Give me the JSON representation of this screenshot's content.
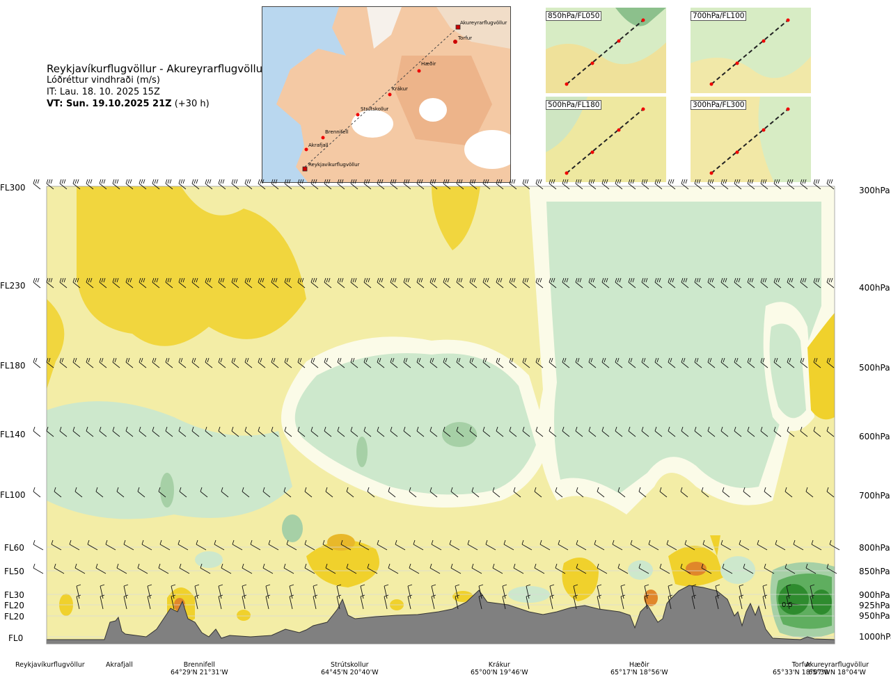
{
  "title": {
    "route": "Reykjavíkurflugvöllur - Akureyrarflugvöllur",
    "quantity": "Lóðréttur vindhraði (m/s)",
    "it": "IT: Lau. 18. 10. 2025 15Z",
    "vt_bold": "VT: Sun. 19.10.2025 21Z",
    "vt_lead": "(+30 h)"
  },
  "map": {
    "points": [
      {
        "name": "Akureyrarflugvöllur"
      },
      {
        "name": "Torfur"
      },
      {
        "name": "Hæðir"
      },
      {
        "name": "Krákur"
      },
      {
        "name": "Strútskollur"
      },
      {
        "name": "Brennifell"
      },
      {
        "name": "Akrafjall"
      },
      {
        "name": "Reykjavíkurflugvöllur"
      }
    ]
  },
  "insets": [
    {
      "label": "850hPa/FL050"
    },
    {
      "label": "700hPa/FL100"
    },
    {
      "label": "500hPa/FL180"
    },
    {
      "label": "300hPa/FL300"
    }
  ],
  "chart_data": {
    "type": "heatmap",
    "title": "Lóðréttur vindhraði (m/s)",
    "y_axis_left_flight_levels": [
      "FL300",
      "FL230",
      "FL180",
      "FL140",
      "FL100",
      "FL60",
      "FL50",
      "FL30",
      "FL20",
      "FL20",
      "FL0"
    ],
    "y_axis_right_pressure": [
      "300hPa",
      "400hPa",
      "500hPa",
      "600hPa",
      "700hPa",
      "800hPa",
      "850hPa",
      "900hPa",
      "925hPa",
      "950hPa",
      "1000hPa"
    ],
    "pressure_hpa": [
      300,
      400,
      500,
      600,
      700,
      800,
      850,
      900,
      925,
      950,
      1000
    ],
    "x_stations": [
      {
        "name": "Reykjavíkurflugvöllur",
        "coord": ""
      },
      {
        "name": "Akrafjall",
        "coord": ""
      },
      {
        "name": "Brennifell",
        "coord": "64°29'N 21°31'W"
      },
      {
        "name": "Strútskollur",
        "coord": "64°45'N 20°40'W"
      },
      {
        "name": "Krákur",
        "coord": "65°00'N 19°46'W"
      },
      {
        "name": "Hæðir",
        "coord": "65°17'N 18°56'W"
      },
      {
        "name": "Torfur",
        "coord": "65°33'N 18°07'W"
      },
      {
        "name": "Akureyrarflugvöllur",
        "coord": "65°39'N 18°04'W"
      }
    ],
    "annotations": [
      {
        "text": "0.5",
        "station_between": "Torfur",
        "pressure_hpa": 925
      }
    ],
    "colors": {
      "strong_up": "#f0d12c",
      "weak_up": "#f3eda6",
      "near_zero": "#fbfbe8",
      "weak_down": "#cde8cc",
      "moderate_down": "#a6d0a6",
      "strong_down": "#2e8b2e",
      "peak_up": "#e0872a",
      "terrain": "#808080"
    }
  }
}
